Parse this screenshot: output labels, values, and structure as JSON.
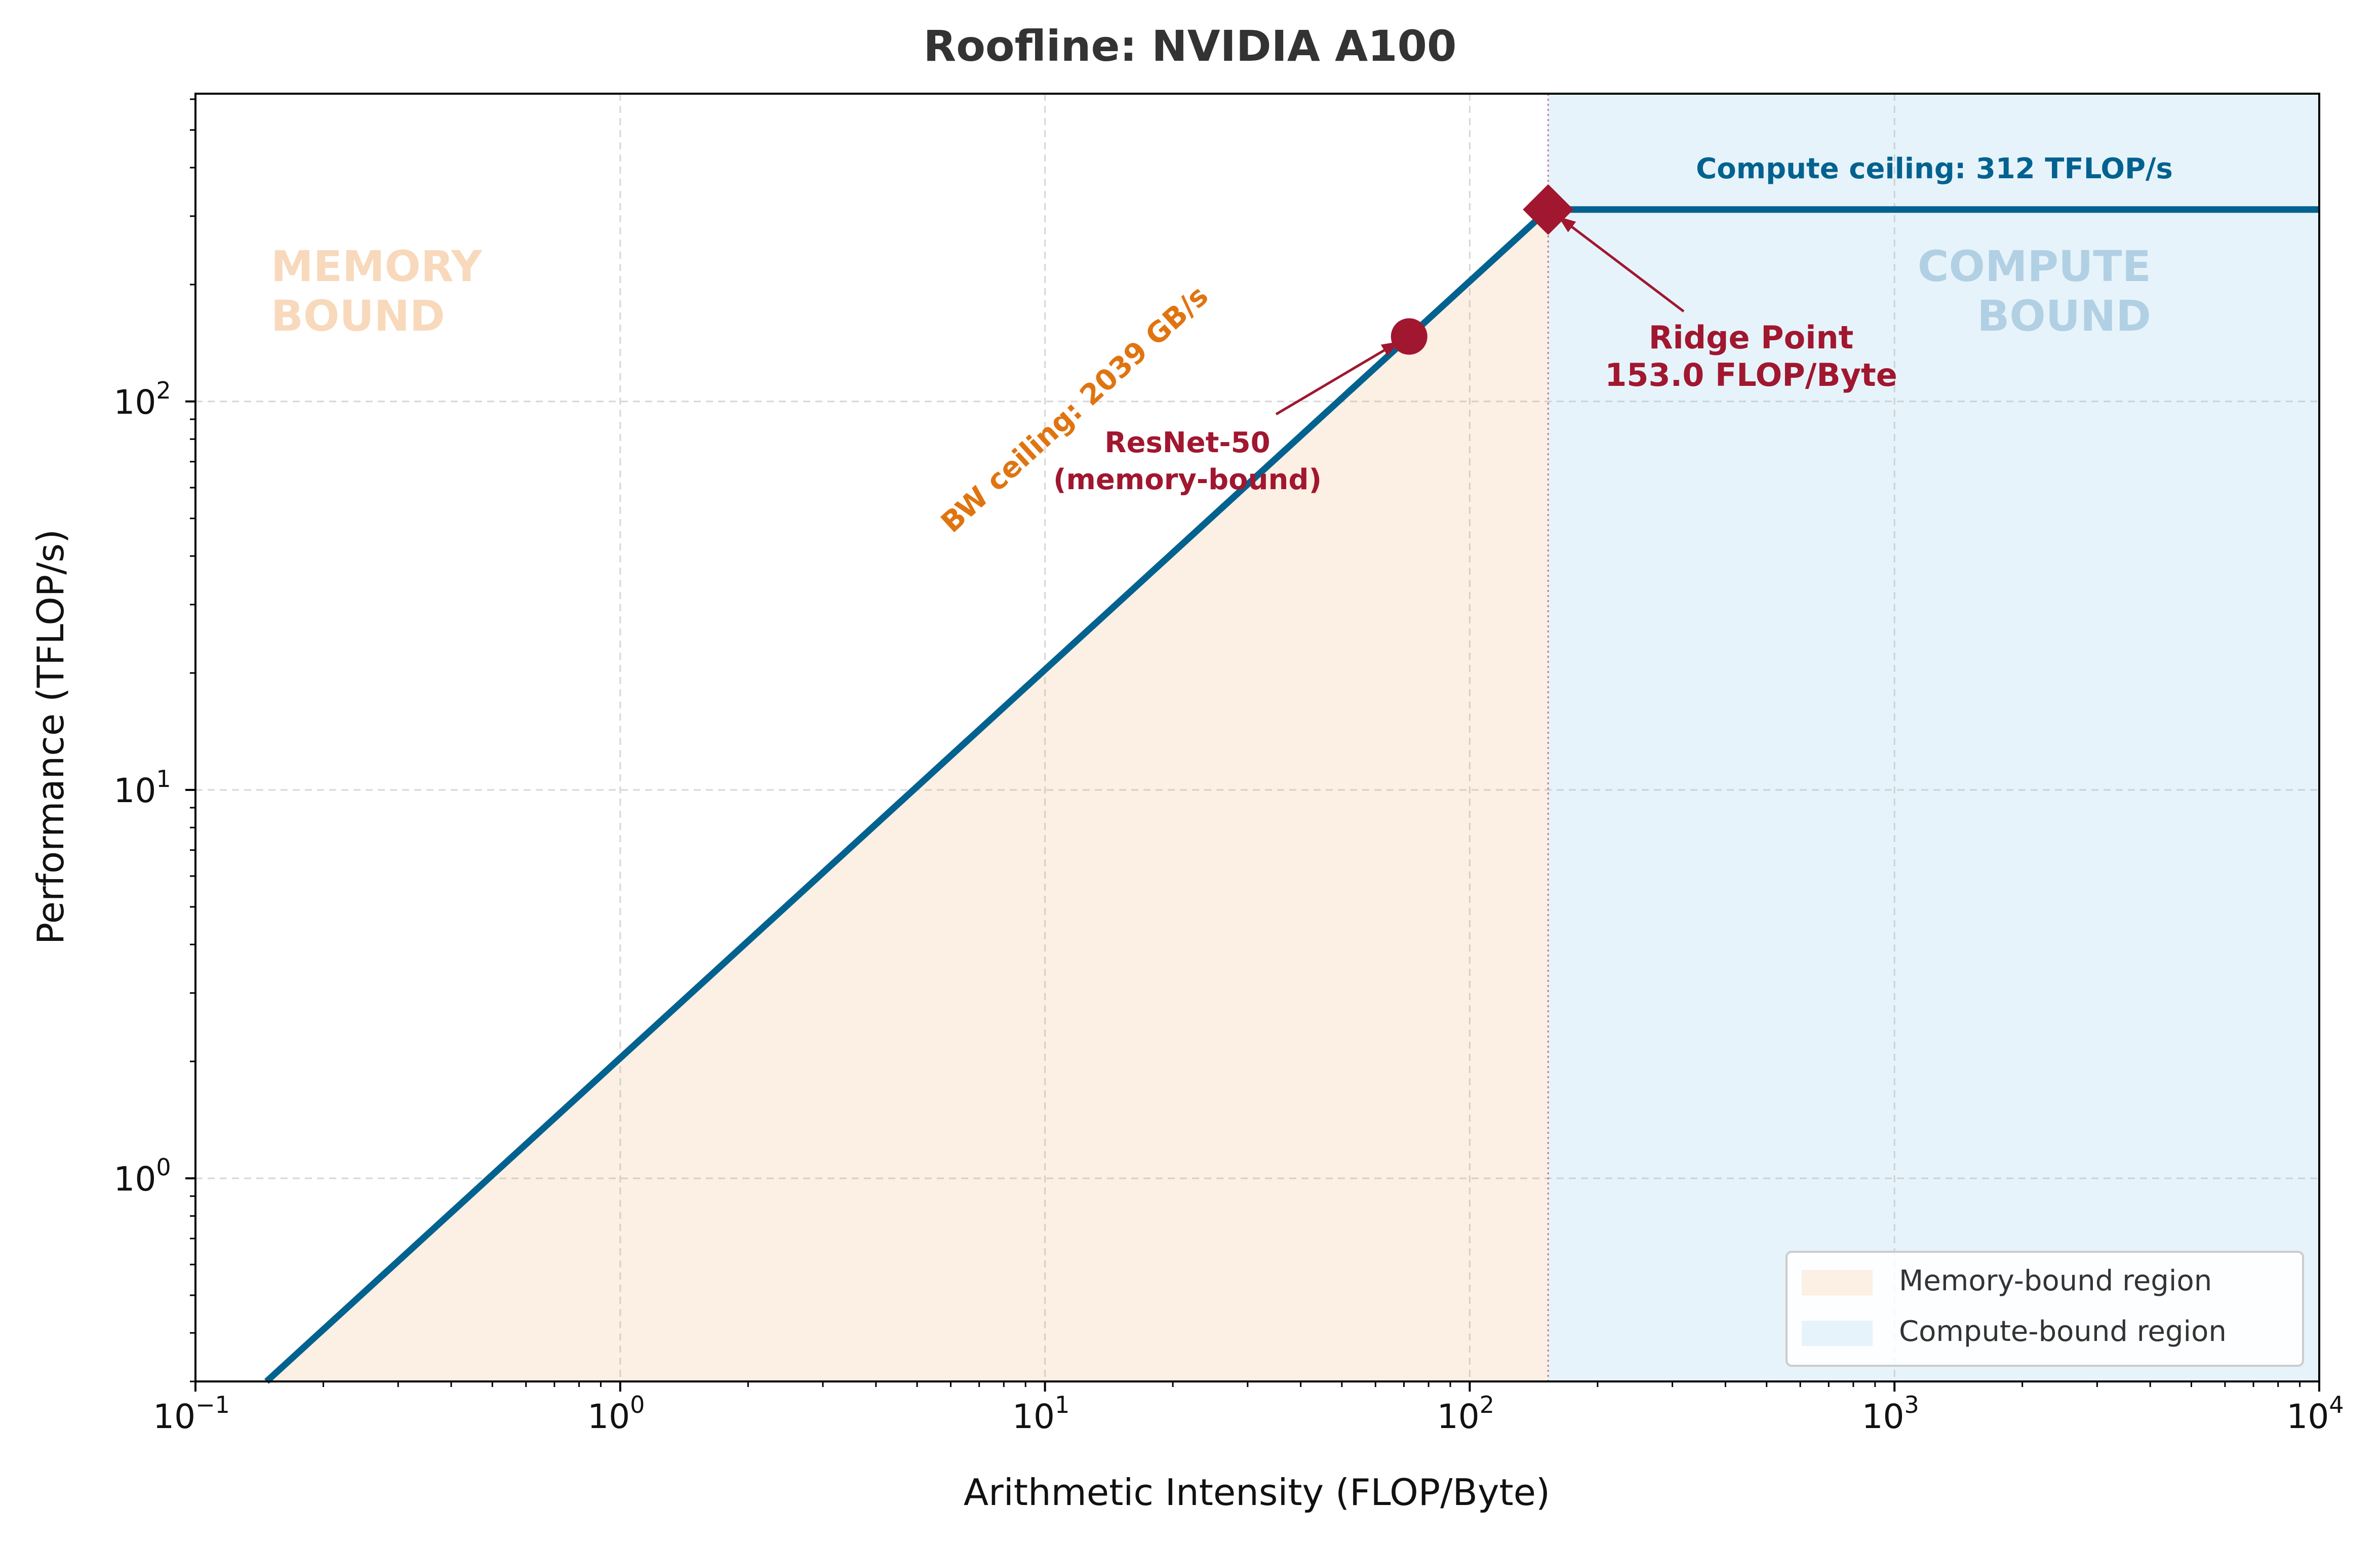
{
  "chart_data": {
    "type": "line",
    "title": "Roofline: NVIDIA A100",
    "xlabel": "Arithmetic Intensity (FLOP/Byte)",
    "ylabel": "Performance (TFLOP/s)",
    "xscale": "log",
    "yscale": "log",
    "xlim": [
      0.1,
      10000
    ],
    "ylim": [
      0.3,
      620
    ],
    "grid": true,
    "x_ticks": [
      {
        "value": 0.1,
        "base": "10",
        "exp": "−1"
      },
      {
        "value": 1,
        "base": "10",
        "exp": "0"
      },
      {
        "value": 10,
        "base": "10",
        "exp": "1"
      },
      {
        "value": 100,
        "base": "10",
        "exp": "2"
      },
      {
        "value": 1000,
        "base": "10",
        "exp": "3"
      },
      {
        "value": 10000,
        "base": "10",
        "exp": "4"
      }
    ],
    "y_ticks": [
      {
        "value": 1,
        "base": "10",
        "exp": "0"
      },
      {
        "value": 10,
        "base": "10",
        "exp": "1"
      },
      {
        "value": 100,
        "base": "10",
        "exp": "2"
      }
    ],
    "bandwidth_tbps": 2.039,
    "peak_tflops": 312,
    "ridge_point": 153.0,
    "roofline_series": {
      "name": "Roofline",
      "x": [
        0.147,
        153.0,
        10000
      ],
      "y": [
        0.3,
        312,
        312
      ],
      "color": "#02628f"
    },
    "points": [
      {
        "name": "ResNet-50",
        "x": 72,
        "y": 147,
        "marker": "circle",
        "color": "#a0172f"
      },
      {
        "name": "Ridge Point",
        "x": 153.0,
        "y": 312,
        "marker": "diamond",
        "color": "#a0172f"
      }
    ],
    "regions": [
      {
        "name": "Memory-bound region",
        "x_from": 0.1,
        "x_to": 153.0,
        "color": "#fcefe3",
        "label_lines": [
          "MEMORY",
          "BOUND"
        ],
        "label_color": "#f8d9bc"
      },
      {
        "name": "Compute-bound region",
        "x_from": 153.0,
        "x_to": 10000,
        "color": "#e7f3fb",
        "label_lines": [
          "COMPUTE",
          "BOUND"
        ],
        "label_color": "#b1d0e3"
      }
    ],
    "annotations": {
      "compute_ceiling": "Compute ceiling: 312 TFLOP/s",
      "bw_ceiling": "BW ceiling: 2039 GB/s",
      "ridge_line1": "Ridge Point",
      "ridge_line2": "153.0 FLOP/Byte",
      "resnet_line1": "ResNet-50",
      "resnet_line2": "(memory-bound)"
    },
    "legend": {
      "placement": "lower-right",
      "entries": [
        {
          "label": "Memory-bound region",
          "color": "#fcefe3"
        },
        {
          "label": "Compute-bound region",
          "color": "#e7f3fb"
        }
      ]
    },
    "colors": {
      "roofline": "#02628f",
      "bw_label": "#e07410",
      "compute_label": "#02628f",
      "marker": "#a0172f"
    }
  }
}
